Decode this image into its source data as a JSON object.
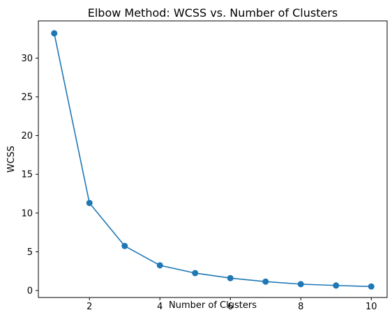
{
  "chart_data": {
    "type": "line",
    "title": "Elbow Method: WCSS vs. Number of Clusters",
    "xlabel": "Number of Clusters",
    "ylabel": "WCSS",
    "x": [
      1,
      2,
      3,
      4,
      5,
      6,
      7,
      8,
      9,
      10
    ],
    "series": [
      {
        "values": [
          33.2,
          11.3,
          5.75,
          3.25,
          2.25,
          1.6,
          1.15,
          0.82,
          0.65,
          0.52
        ],
        "color": "#1f77b4",
        "marker": "circle"
      }
    ],
    "xlim": [
      0.55,
      10.45
    ],
    "ylim": [
      -0.9,
      34.8
    ],
    "x_ticks": [
      2,
      4,
      6,
      8,
      10
    ],
    "y_ticks": [
      0,
      5,
      10,
      15,
      20,
      25,
      30
    ],
    "grid": false,
    "legend": false
  }
}
